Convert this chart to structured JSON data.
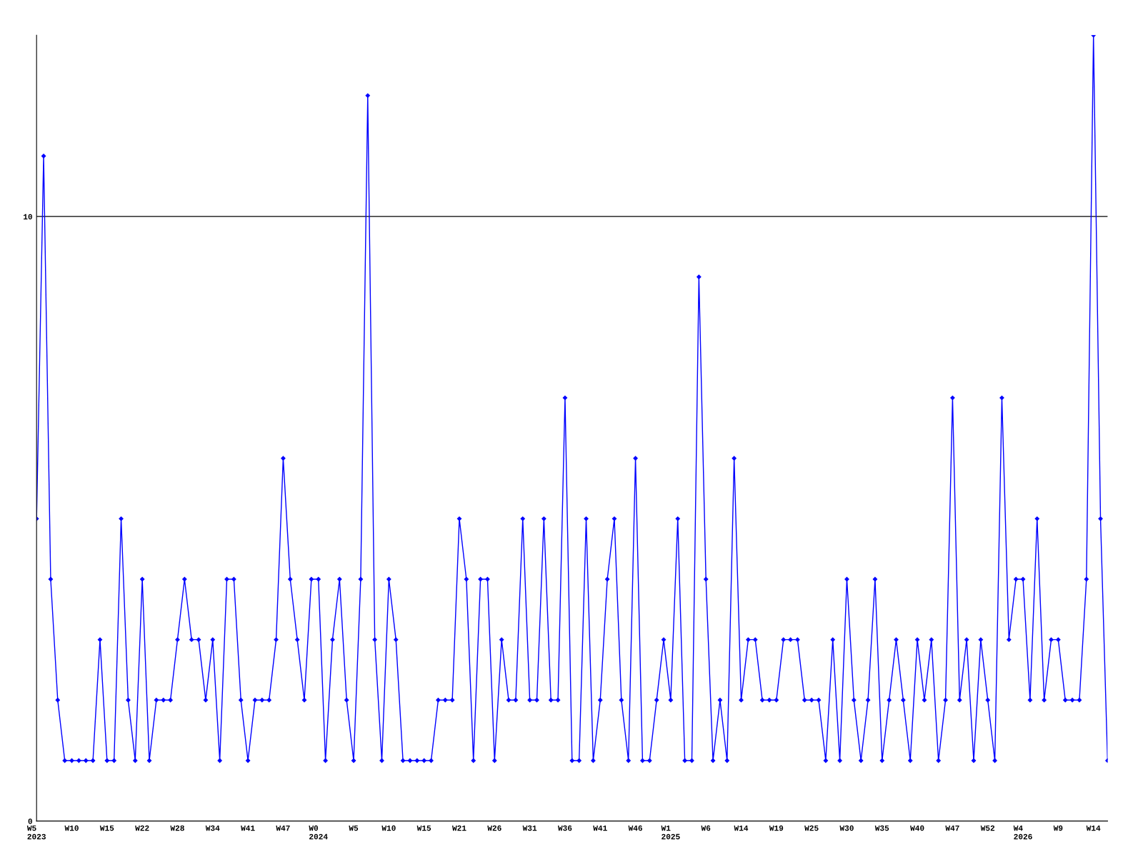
{
  "chart_data": {
    "type": "line",
    "categories": [
      "W5\n2023",
      null,
      null,
      null,
      null,
      "W10",
      null,
      null,
      null,
      null,
      "W15",
      null,
      null,
      null,
      null,
      "W22",
      null,
      null,
      null,
      null,
      "W28",
      null,
      null,
      null,
      null,
      "W34",
      null,
      null,
      null,
      null,
      "W41",
      null,
      null,
      null,
      null,
      "W47",
      null,
      null,
      null,
      null,
      "W0\n2024",
      null,
      null,
      null,
      null,
      "W5",
      null,
      null,
      null,
      null,
      "W10",
      null,
      null,
      null,
      null,
      "W15",
      null,
      null,
      null,
      null,
      "W21",
      null,
      null,
      null,
      null,
      "W26",
      null,
      null,
      null,
      null,
      "W31",
      null,
      null,
      null,
      null,
      "W36",
      null,
      null,
      null,
      null,
      "W41",
      null,
      null,
      null,
      null,
      "W46",
      null,
      null,
      null,
      null,
      "W1\n2025",
      null,
      null,
      null,
      null,
      "W6",
      null,
      null,
      null,
      null,
      "W14",
      null,
      null,
      null,
      null,
      "W19",
      null,
      null,
      null,
      null,
      "W25",
      null,
      null,
      null,
      null,
      "W30",
      null,
      null,
      null,
      null,
      "W35",
      null,
      null,
      null,
      null,
      "W40",
      null,
      null,
      null,
      null,
      "W47",
      null,
      null,
      null,
      null,
      "W52",
      null,
      null,
      null,
      null,
      "W4\n2026",
      null,
      null,
      null,
      null,
      "W9",
      null,
      null,
      null,
      null,
      "W14",
      null,
      null
    ],
    "series": [
      {
        "color": "#0000ff",
        "values": [
          5,
          11,
          4,
          2,
          1,
          1,
          1,
          1,
          1,
          3,
          1,
          1,
          5,
          2,
          1,
          4,
          1,
          2,
          2,
          2,
          3,
          4,
          3,
          3,
          2,
          3,
          1,
          4,
          4,
          2,
          1,
          2,
          2,
          2,
          3,
          6,
          4,
          3,
          2,
          4,
          4,
          1,
          3,
          4,
          2,
          1,
          4,
          12,
          3,
          1,
          4,
          3,
          1,
          1,
          1,
          1,
          1,
          2,
          2,
          2,
          5,
          4,
          1,
          4,
          4,
          1,
          3,
          2,
          2,
          5,
          2,
          2,
          5,
          2,
          2,
          7,
          1,
          1,
          5,
          1,
          2,
          4,
          5,
          2,
          1,
          6,
          1,
          1,
          2,
          3,
          2,
          5,
          1,
          1,
          9,
          4,
          1,
          2,
          1,
          6,
          2,
          3,
          3,
          2,
          2,
          2,
          3,
          3,
          3,
          2,
          2,
          2,
          1,
          3,
          1,
          4,
          2,
          1,
          2,
          4,
          1,
          2,
          3,
          2,
          1,
          3,
          2,
          3,
          1,
          2,
          7,
          2,
          3,
          1,
          3,
          2,
          1,
          7,
          3,
          4,
          4,
          2,
          5,
          2,
          3,
          3,
          2,
          2,
          2,
          4,
          13,
          5,
          1
        ]
      }
    ],
    "ylim": [
      0,
      13
    ],
    "yticks": [
      0,
      10
    ],
    "grid": "y",
    "marker": "diamond",
    "line_style": "solid"
  }
}
